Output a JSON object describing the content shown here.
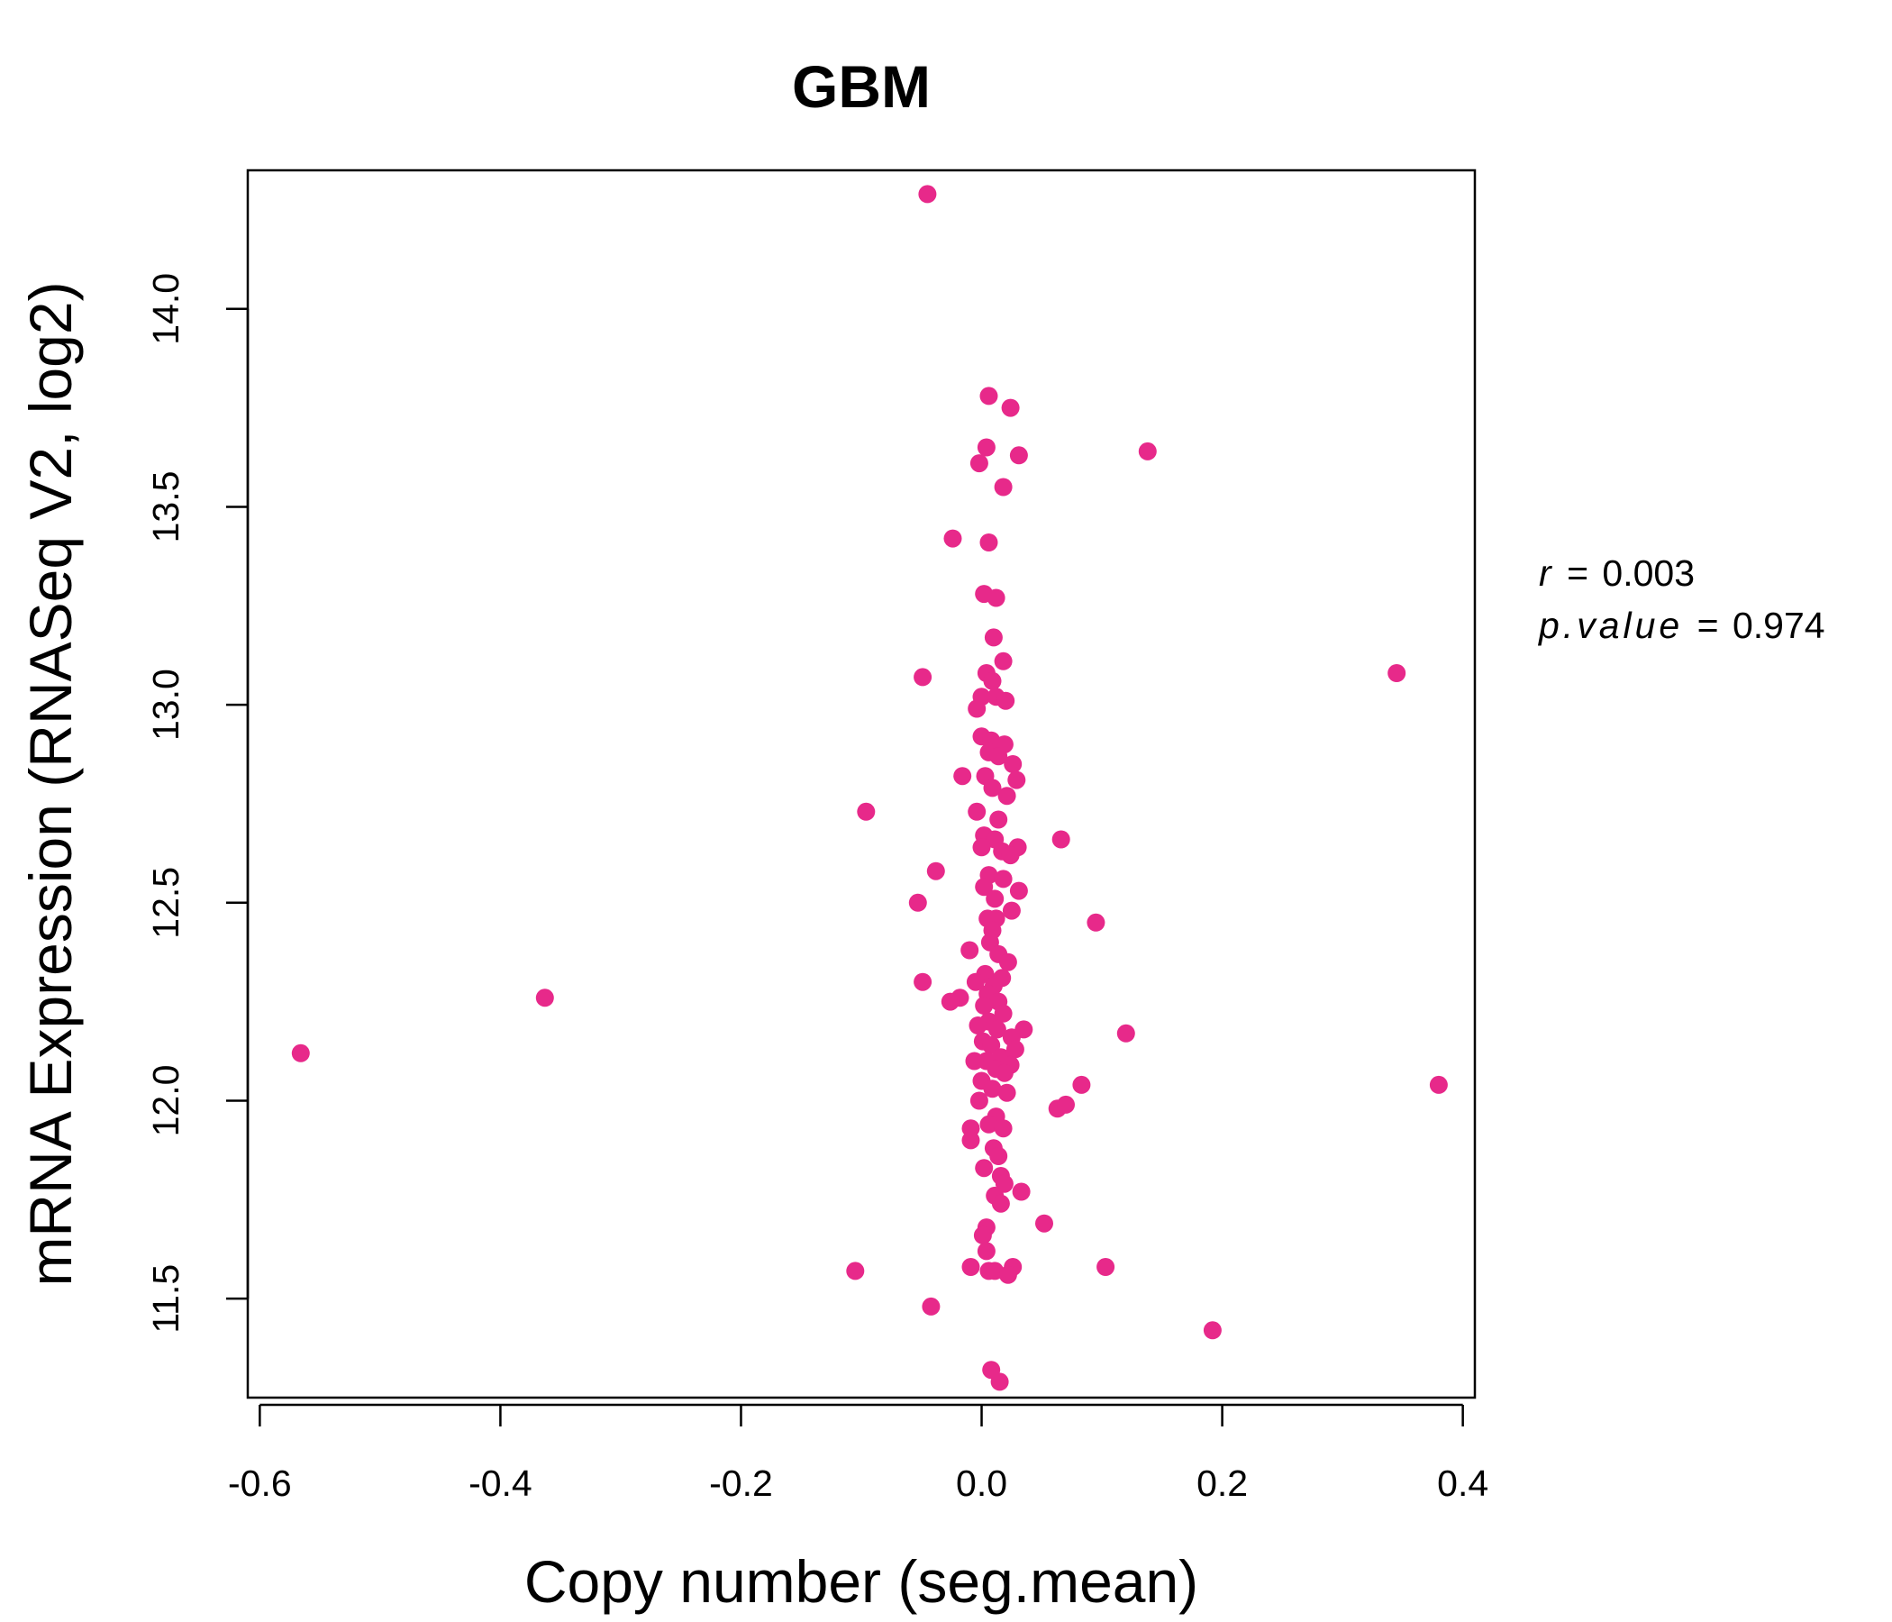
{
  "chart_data": {
    "type": "scatter",
    "title": "GBM",
    "xlabel": "Copy number (seg.mean)",
    "ylabel": "mRNA Expression (RNASeq V2, log2)",
    "xlim": [
      -0.61,
      0.41
    ],
    "ylim": [
      11.25,
      14.35
    ],
    "x_ticks": [
      -0.6,
      -0.4,
      -0.2,
      0.0,
      0.2,
      0.4
    ],
    "x_tick_labels": [
      "-0.6",
      "-0.4",
      "-0.2",
      "0.0",
      "0.2",
      "0.4"
    ],
    "y_ticks": [
      11.5,
      12.0,
      12.5,
      13.0,
      13.5,
      14.0
    ],
    "y_tick_labels": [
      "11.5",
      "12.0",
      "12.5",
      "13.0",
      "13.5",
      "14.0"
    ],
    "grid": false,
    "legend": "none",
    "colors": {
      "points": "#E7298A",
      "title": "#E7298A",
      "axes": "#000000"
    },
    "stats": {
      "r_symbol": "r",
      "r_value": "0.003",
      "p_symbol": "p.value",
      "p_value": "0.974"
    },
    "points": [
      [
        -0.045,
        14.29
      ],
      [
        0.006,
        13.78
      ],
      [
        0.024,
        13.75
      ],
      [
        0.004,
        13.65
      ],
      [
        0.031,
        13.63
      ],
      [
        0.138,
        13.64
      ],
      [
        -0.002,
        13.61
      ],
      [
        0.018,
        13.55
      ],
      [
        -0.024,
        13.42
      ],
      [
        0.006,
        13.41
      ],
      [
        0.002,
        13.28
      ],
      [
        0.012,
        13.27
      ],
      [
        0.01,
        13.17
      ],
      [
        0.018,
        13.11
      ],
      [
        0.345,
        13.08
      ],
      [
        -0.049,
        13.07
      ],
      [
        0.004,
        13.08
      ],
      [
        0.009,
        13.06
      ],
      [
        0.0,
        13.02
      ],
      [
        0.012,
        13.02
      ],
      [
        0.02,
        13.01
      ],
      [
        -0.004,
        12.99
      ],
      [
        0.0,
        12.92
      ],
      [
        0.008,
        12.91
      ],
      [
        0.019,
        12.9
      ],
      [
        0.006,
        12.88
      ],
      [
        0.014,
        12.87
      ],
      [
        0.026,
        12.85
      ],
      [
        -0.016,
        12.82
      ],
      [
        0.003,
        12.82
      ],
      [
        0.029,
        12.81
      ],
      [
        0.009,
        12.79
      ],
      [
        0.021,
        12.77
      ],
      [
        -0.096,
        12.73
      ],
      [
        -0.004,
        12.73
      ],
      [
        0.014,
        12.71
      ],
      [
        0.002,
        12.67
      ],
      [
        0.011,
        12.66
      ],
      [
        0.066,
        12.66
      ],
      [
        0.0,
        12.64
      ],
      [
        0.017,
        12.63
      ],
      [
        0.03,
        12.64
      ],
      [
        0.024,
        12.62
      ],
      [
        -0.038,
        12.58
      ],
      [
        0.006,
        12.57
      ],
      [
        0.018,
        12.56
      ],
      [
        0.002,
        12.54
      ],
      [
        0.031,
        12.53
      ],
      [
        0.011,
        12.51
      ],
      [
        -0.053,
        12.5
      ],
      [
        0.025,
        12.48
      ],
      [
        0.005,
        12.46
      ],
      [
        0.012,
        12.46
      ],
      [
        0.095,
        12.45
      ],
      [
        0.009,
        12.43
      ],
      [
        0.007,
        12.4
      ],
      [
        -0.01,
        12.38
      ],
      [
        0.014,
        12.37
      ],
      [
        0.022,
        12.35
      ],
      [
        0.003,
        12.32
      ],
      [
        -0.049,
        12.3
      ],
      [
        0.017,
        12.31
      ],
      [
        -0.005,
        12.3
      ],
      [
        0.01,
        12.29
      ],
      [
        0.005,
        12.27
      ],
      [
        -0.363,
        12.26
      ],
      [
        -0.018,
        12.26
      ],
      [
        -0.026,
        12.25
      ],
      [
        0.014,
        12.25
      ],
      [
        0.002,
        12.24
      ],
      [
        0.018,
        12.22
      ],
      [
        0.006,
        12.2
      ],
      [
        -0.003,
        12.19
      ],
      [
        0.013,
        12.18
      ],
      [
        0.035,
        12.18
      ],
      [
        0.025,
        12.16
      ],
      [
        0.12,
        12.17
      ],
      [
        0.001,
        12.15
      ],
      [
        0.008,
        12.14
      ],
      [
        0.028,
        12.13
      ],
      [
        -0.566,
        12.12
      ],
      [
        0.016,
        12.11
      ],
      [
        0.004,
        12.1
      ],
      [
        -0.006,
        12.1
      ],
      [
        0.024,
        12.09
      ],
      [
        0.012,
        12.08
      ],
      [
        0.019,
        12.07
      ],
      [
        0.0,
        12.05
      ],
      [
        0.083,
        12.04
      ],
      [
        0.38,
        12.04
      ],
      [
        0.009,
        12.03
      ],
      [
        0.021,
        12.02
      ],
      [
        -0.002,
        12.0
      ],
      [
        0.063,
        11.98
      ],
      [
        0.07,
        11.99
      ],
      [
        0.012,
        11.96
      ],
      [
        0.006,
        11.94
      ],
      [
        0.018,
        11.93
      ],
      [
        -0.009,
        11.93
      ],
      [
        -0.009,
        11.9
      ],
      [
        0.01,
        11.88
      ],
      [
        0.014,
        11.86
      ],
      [
        0.002,
        11.83
      ],
      [
        0.016,
        11.81
      ],
      [
        0.019,
        11.79
      ],
      [
        0.033,
        11.77
      ],
      [
        0.011,
        11.76
      ],
      [
        0.016,
        11.74
      ],
      [
        0.052,
        11.69
      ],
      [
        0.004,
        11.68
      ],
      [
        0.001,
        11.66
      ],
      [
        0.004,
        11.62
      ],
      [
        -0.105,
        11.57
      ],
      [
        -0.009,
        11.58
      ],
      [
        0.026,
        11.58
      ],
      [
        0.103,
        11.58
      ],
      [
        0.006,
        11.57
      ],
      [
        0.011,
        11.57
      ],
      [
        0.022,
        11.56
      ],
      [
        -0.042,
        11.48
      ],
      [
        0.192,
        11.42
      ],
      [
        0.008,
        11.32
      ],
      [
        0.015,
        11.29
      ]
    ]
  }
}
